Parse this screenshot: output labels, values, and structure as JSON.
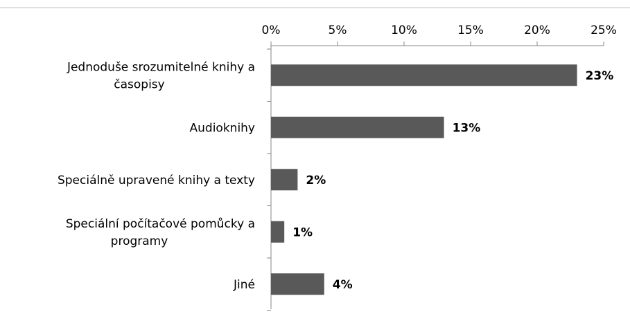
{
  "chart_data": {
    "type": "bar",
    "orientation": "horizontal",
    "categories": [
      [
        "Jednoduše srozumitelné knihy a",
        "časopisy"
      ],
      [
        "Audioknihy"
      ],
      [
        "Speciálně upravené knihy a texty"
      ],
      [
        "Speciální počítačové pomůcky a",
        "programy"
      ],
      [
        "Jiné"
      ]
    ],
    "values": [
      23,
      13,
      2,
      1,
      4
    ],
    "data_labels": [
      "23%",
      "13%",
      "2%",
      "1%",
      "4%"
    ],
    "x_ticks": [
      "0%",
      "5%",
      "10%",
      "15%",
      "20%",
      "25%"
    ],
    "x_tick_values": [
      0,
      5,
      10,
      15,
      20,
      25
    ],
    "xlim": [
      0,
      25
    ],
    "x_axis_position": "top",
    "grid": false,
    "legend": false,
    "bar_color": "#595959"
  }
}
